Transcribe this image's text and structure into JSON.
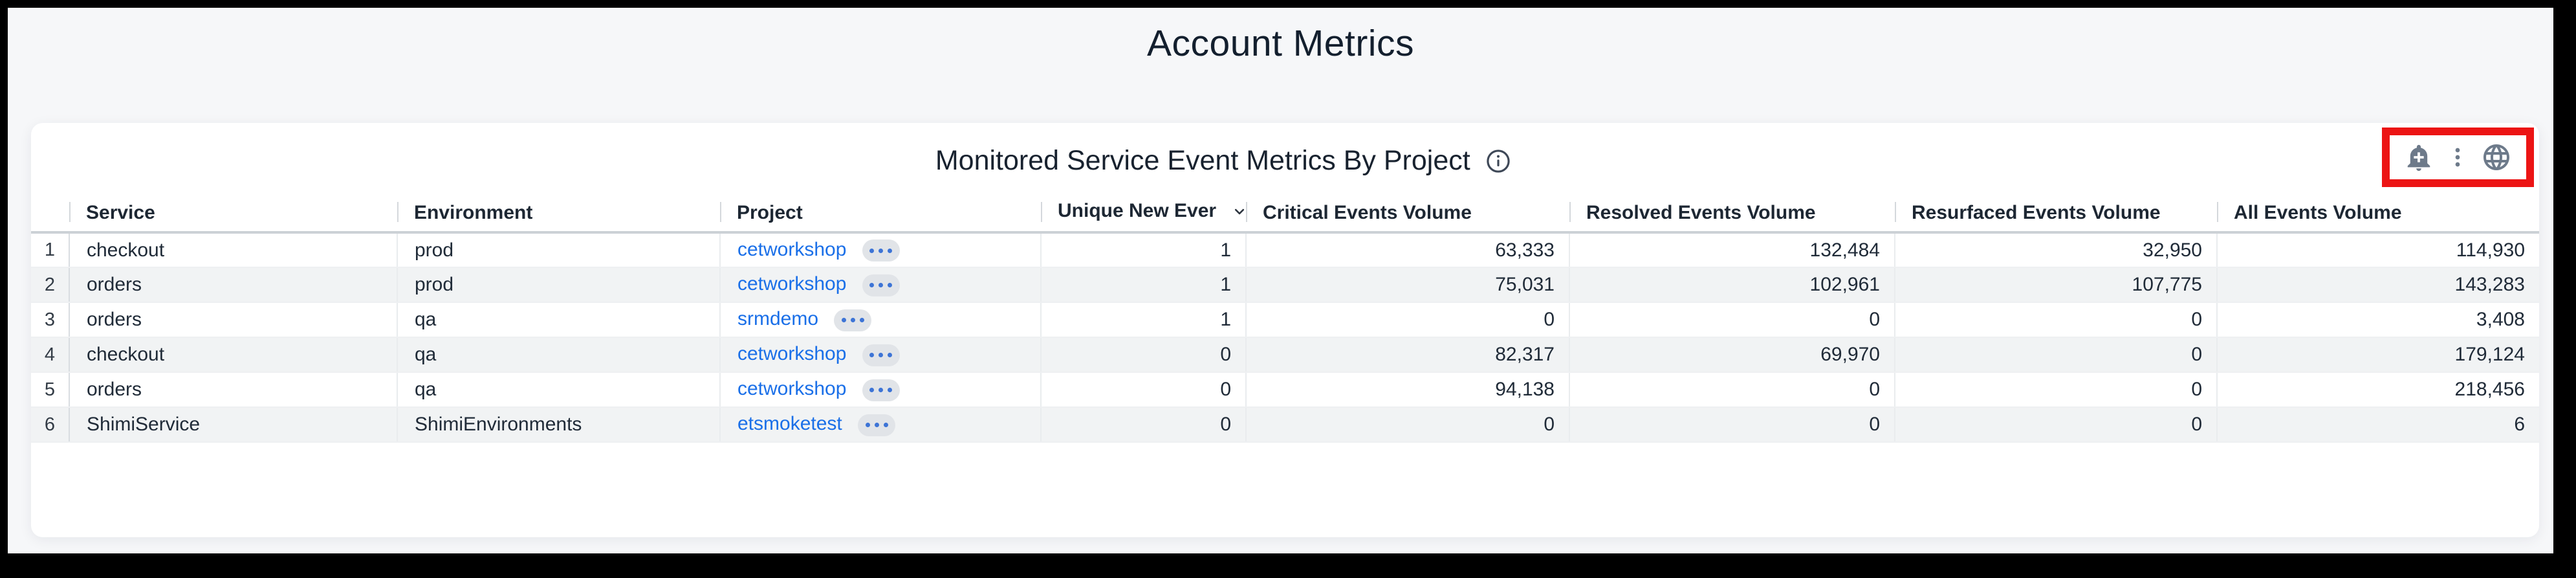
{
  "page": {
    "title": "Account Metrics"
  },
  "panel": {
    "title": "Monitored Service Event Metrics By Project",
    "info_icon": "info-icon",
    "actions": [
      {
        "icon": "add-alert-icon"
      },
      {
        "icon": "kebab-menu-icon"
      },
      {
        "icon": "globe-icon"
      }
    ],
    "annotation": {
      "shape": "red-highlight-box",
      "color": "#ec1414"
    }
  },
  "table": {
    "columns": [
      {
        "key": "index",
        "label": "",
        "align": "center"
      },
      {
        "key": "service",
        "label": "Service",
        "align": "left"
      },
      {
        "key": "environment",
        "label": "Environment",
        "align": "left"
      },
      {
        "key": "project",
        "label": "Project",
        "align": "left"
      },
      {
        "key": "unique",
        "label": "Unique New Ever",
        "align": "right",
        "sorted": "desc"
      },
      {
        "key": "critical",
        "label": "Critical Events Volume",
        "align": "right"
      },
      {
        "key": "resolved",
        "label": "Resolved Events Volume",
        "align": "right"
      },
      {
        "key": "resurfaced",
        "label": "Resurfaced Events Volume",
        "align": "right"
      },
      {
        "key": "all",
        "label": "All Events Volume",
        "align": "right"
      }
    ],
    "rows": [
      {
        "index": "1",
        "service": "checkout",
        "environment": "prod",
        "project": "cetworkshop",
        "unique": "1",
        "critical": "63,333",
        "resolved": "132,484",
        "resurfaced": "32,950",
        "all": "114,930"
      },
      {
        "index": "2",
        "service": "orders",
        "environment": "prod",
        "project": "cetworkshop",
        "unique": "1",
        "critical": "75,031",
        "resolved": "102,961",
        "resurfaced": "107,775",
        "all": "143,283"
      },
      {
        "index": "3",
        "service": "orders",
        "environment": "qa",
        "project": "srmdemo",
        "unique": "1",
        "critical": "0",
        "resolved": "0",
        "resurfaced": "0",
        "all": "3,408"
      },
      {
        "index": "4",
        "service": "checkout",
        "environment": "qa",
        "project": "cetworkshop",
        "unique": "0",
        "critical": "82,317",
        "resolved": "69,970",
        "resurfaced": "0",
        "all": "179,124"
      },
      {
        "index": "5",
        "service": "orders",
        "environment": "qa",
        "project": "cetworkshop",
        "unique": "0",
        "critical": "94,138",
        "resolved": "0",
        "resurfaced": "0",
        "all": "218,456"
      },
      {
        "index": "6",
        "service": "ShimiService",
        "environment": "ShimiEnvironments",
        "project": "etsmoketest",
        "unique": "0",
        "critical": "0",
        "resolved": "0",
        "resurfaced": "0",
        "all": "6"
      }
    ]
  },
  "colors": {
    "page_background": "#f6f7f9",
    "panel_background": "#ffffff",
    "title_text": "#131f2e",
    "table_text": "#202b38",
    "link_blue": "#1a6fe8",
    "stripe_gray": "#f1f3f4",
    "icon_gray": "#6d7a8a",
    "annotation_red": "#ec1414"
  }
}
